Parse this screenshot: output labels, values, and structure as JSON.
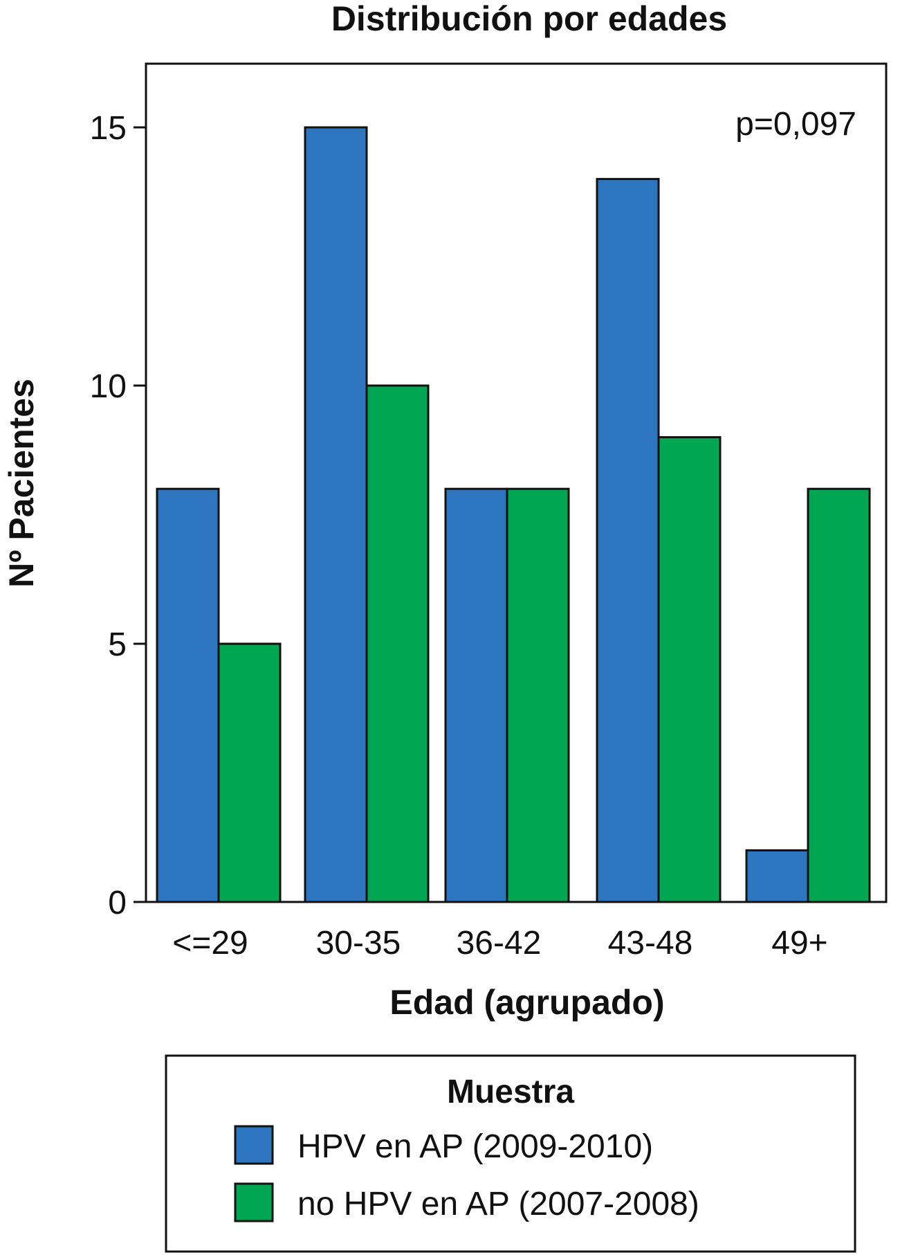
{
  "chart_data": {
    "type": "bar",
    "title": "Distribución por edades",
    "xlabel": "Edad (agrupado)",
    "ylabel": "Nº Pacientes",
    "categories": [
      "<=29",
      "30-35",
      "36-42",
      "43-48",
      "49+"
    ],
    "series": [
      {
        "name": "HPV en AP (2009-2010)",
        "color": "#2e75bf",
        "values": [
          8,
          15,
          8,
          14,
          1
        ]
      },
      {
        "name": "no HPV en AP (2007-2008)",
        "color": "#00a651",
        "values": [
          5,
          10,
          8,
          9,
          8
        ]
      }
    ],
    "ylim": [
      0,
      15.5
    ],
    "yticks": [
      0,
      5,
      10,
      15
    ],
    "annotation": "p=0,097",
    "legend": {
      "title": "Muestra",
      "placement": "bottom"
    },
    "grid": false
  }
}
